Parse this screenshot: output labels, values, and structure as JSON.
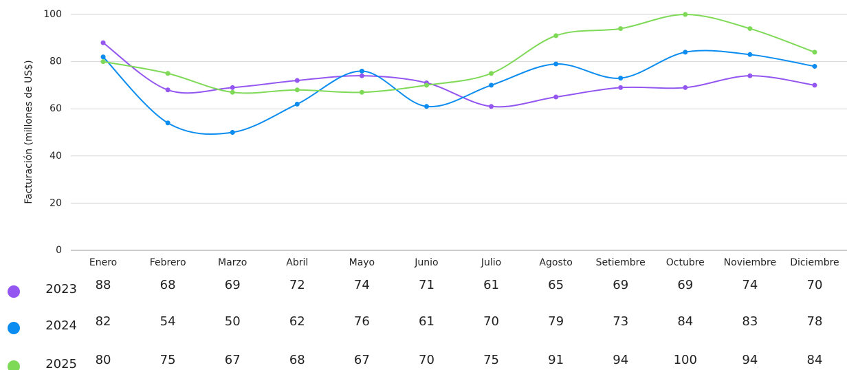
{
  "chart_data": {
    "type": "line",
    "y_label": "Facturación (millones de US$)",
    "categories": [
      "Enero",
      "Febrero",
      "Marzo",
      "Abril",
      "Mayo",
      "Junio",
      "Julio",
      "Agosto",
      "Setiembre",
      "Octubre",
      "Noviembre",
      "Diciembre"
    ],
    "series": [
      {
        "name": "2023",
        "color": "#9456f0",
        "values": [
          88,
          68,
          69,
          72,
          74,
          71,
          61,
          65,
          69,
          69,
          74,
          70
        ]
      },
      {
        "name": "2024",
        "color": "#0b8cf0",
        "values": [
          82,
          54,
          50,
          62,
          76,
          61,
          70,
          79,
          73,
          84,
          83,
          78
        ]
      },
      {
        "name": "2025",
        "color": "#7ed957",
        "values": [
          80,
          75,
          67,
          68,
          67,
          70,
          75,
          91,
          94,
          100,
          94,
          84
        ]
      }
    ],
    "ylim": [
      0,
      100
    ],
    "yticks": [
      0,
      20,
      40,
      60,
      80,
      100
    ],
    "grid": true,
    "smooth": true
  }
}
